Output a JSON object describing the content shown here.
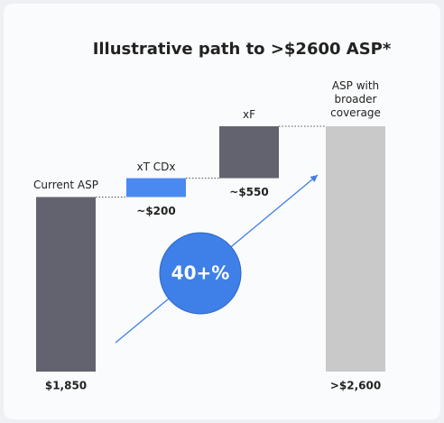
{
  "chart_data": {
    "type": "waterfall",
    "title": "Illustrative path to >$2600 ASP*",
    "categories": [
      "Current ASP",
      "xT CDx",
      "xF",
      "ASP with broader coverage"
    ],
    "values": [
      1850,
      200,
      550,
      2600
    ],
    "value_labels": [
      "$1,850",
      "~$200",
      "~$550",
      ">$2,600"
    ],
    "colors": [
      "#62636e",
      "#4a8af0",
      "#62636e",
      "#c9c9c9"
    ],
    "annotation": "40+%",
    "annotation_color": "#3f7fe8"
  }
}
